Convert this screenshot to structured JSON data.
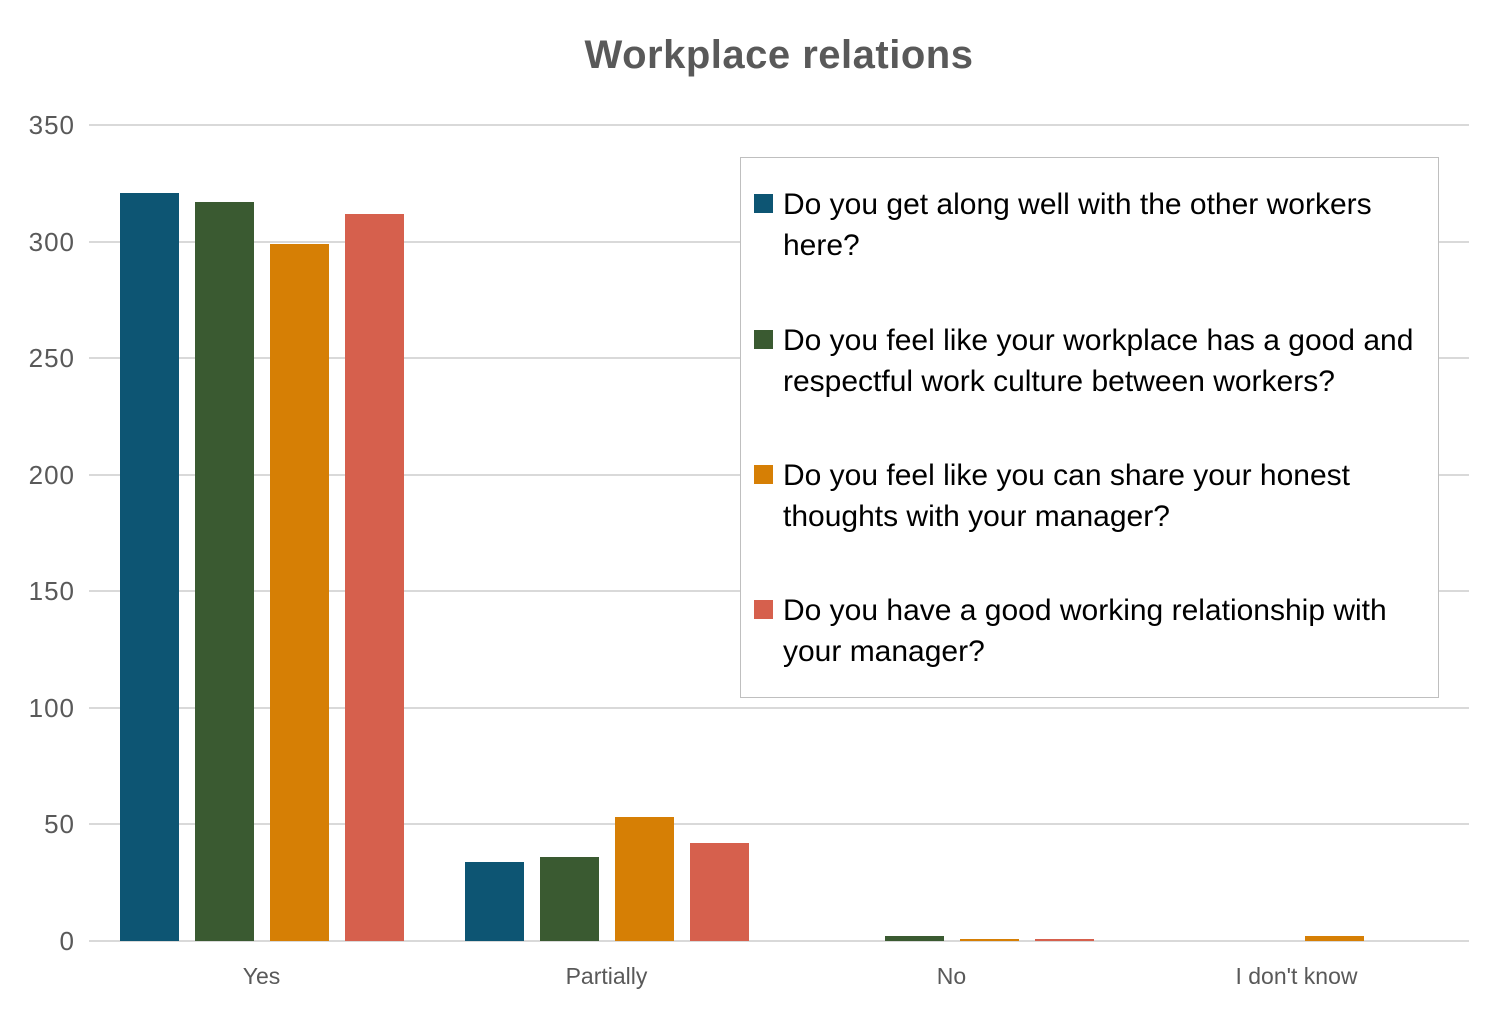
{
  "title": "Workplace relations",
  "style": {
    "title_color": "#595959",
    "axis_label_color": "#595959",
    "gridline_color": "#d9d9d9",
    "legend_border_color": "#bfbfbf",
    "background_color": "#ffffff"
  },
  "chart_data": {
    "type": "bar",
    "title": "Workplace relations",
    "categories": [
      "Yes",
      "Partially",
      "No",
      "I don't know"
    ],
    "series": [
      {
        "name": "Do you get along well with the other workers here?",
        "color": "#0d5573",
        "values": [
          321,
          34,
          0,
          0
        ]
      },
      {
        "name": "Do you feel like your workplace has a good and respectful work culture between workers?",
        "color": "#3a5a31",
        "values": [
          317,
          36,
          2,
          0
        ]
      },
      {
        "name": "Do you feel like you can share your honest thoughts with your manager?",
        "color": "#d67f05",
        "values": [
          299,
          53,
          1,
          2
        ]
      },
      {
        "name": "Do you have a good working relationship with your manager?",
        "color": "#d6604d",
        "values": [
          312,
          42,
          1,
          0
        ]
      }
    ],
    "ylim": [
      0,
      350
    ],
    "yticks": [
      0,
      50,
      100,
      150,
      200,
      250,
      300,
      350
    ],
    "grid": true,
    "legend_position": "inside-top-right",
    "xlabel": "",
    "ylabel": ""
  }
}
